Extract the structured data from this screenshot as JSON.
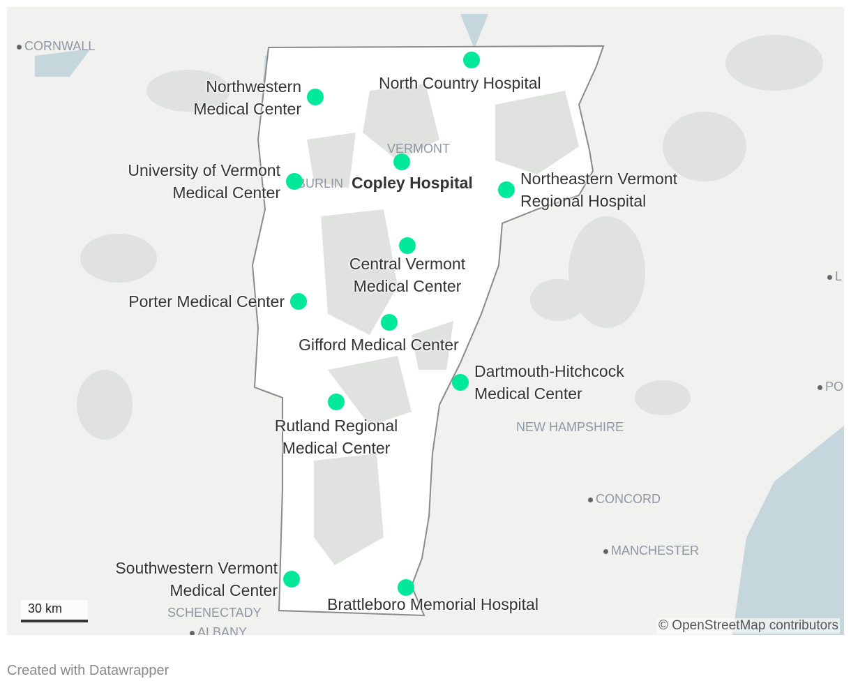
{
  "colors": {
    "marker": "#00e89a",
    "land": "#f1f1ef",
    "highlight_region": "#ffffff",
    "forest": "#dde1dd",
    "water": "#c6d6dd",
    "border": "#8a8a8a"
  },
  "markers": [
    {
      "name": "North Country Hospital",
      "bold": false
    },
    {
      "name": "Northwestern Medical Center",
      "bold": false
    },
    {
      "name": "University of Vermont Medical Center",
      "bold": false
    },
    {
      "name": "Copley Hospital",
      "bold": true
    },
    {
      "name": "Northeastern Vermont Regional Hospital",
      "bold": false
    },
    {
      "name": "Central Vermont Medical Center",
      "bold": false
    },
    {
      "name": "Porter Medical Center",
      "bold": false
    },
    {
      "name": "Gifford Medical Center",
      "bold": false
    },
    {
      "name": "Dartmouth-Hitchcock Medical Center",
      "bold": false
    },
    {
      "name": "Rutland Regional Medical Center",
      "bold": false
    },
    {
      "name": "Southwestern Vermont Medical Center",
      "bold": false
    },
    {
      "name": "Brattleboro Memorial Hospital",
      "bold": false
    }
  ],
  "label_lines": {
    "north_country": [
      "North Country Hospital"
    ],
    "northwestern": [
      "Northwestern",
      "Medical Center"
    ],
    "uvm": [
      "University of Vermont",
      "Medical Center"
    ],
    "copley": [
      "Copley Hospital"
    ],
    "northeastern": [
      "Northeastern Vermont",
      "Regional Hospital"
    ],
    "central": [
      "Central Vermont",
      "Medical Center"
    ],
    "porter": [
      "Porter Medical Center"
    ],
    "gifford": [
      "Gifford Medical Center"
    ],
    "dartmouth": [
      "Dartmouth-Hitchcock",
      "Medical Center"
    ],
    "rutland": [
      "Rutland Regional",
      "Medical Center"
    ],
    "southwestern": [
      "Southwestern Vermont",
      "Medical Center"
    ],
    "brattleboro": [
      "Brattleboro Memorial Hospital"
    ]
  },
  "places": {
    "cornwall": "CORNWALL",
    "vermont": "VERMONT",
    "burlington": "BURLIN",
    "new_hampshire": "NEW HAMPSHIRE",
    "concord": "CONCORD",
    "manchester": "MANCHESTER",
    "schenectady": "SCHENECTADY",
    "albany": "ALBANY",
    "l": "L",
    "po": "PO"
  },
  "scale": "30 km",
  "attribution": "© OpenStreetMap contributors",
  "footer": "Created with Datawrapper"
}
